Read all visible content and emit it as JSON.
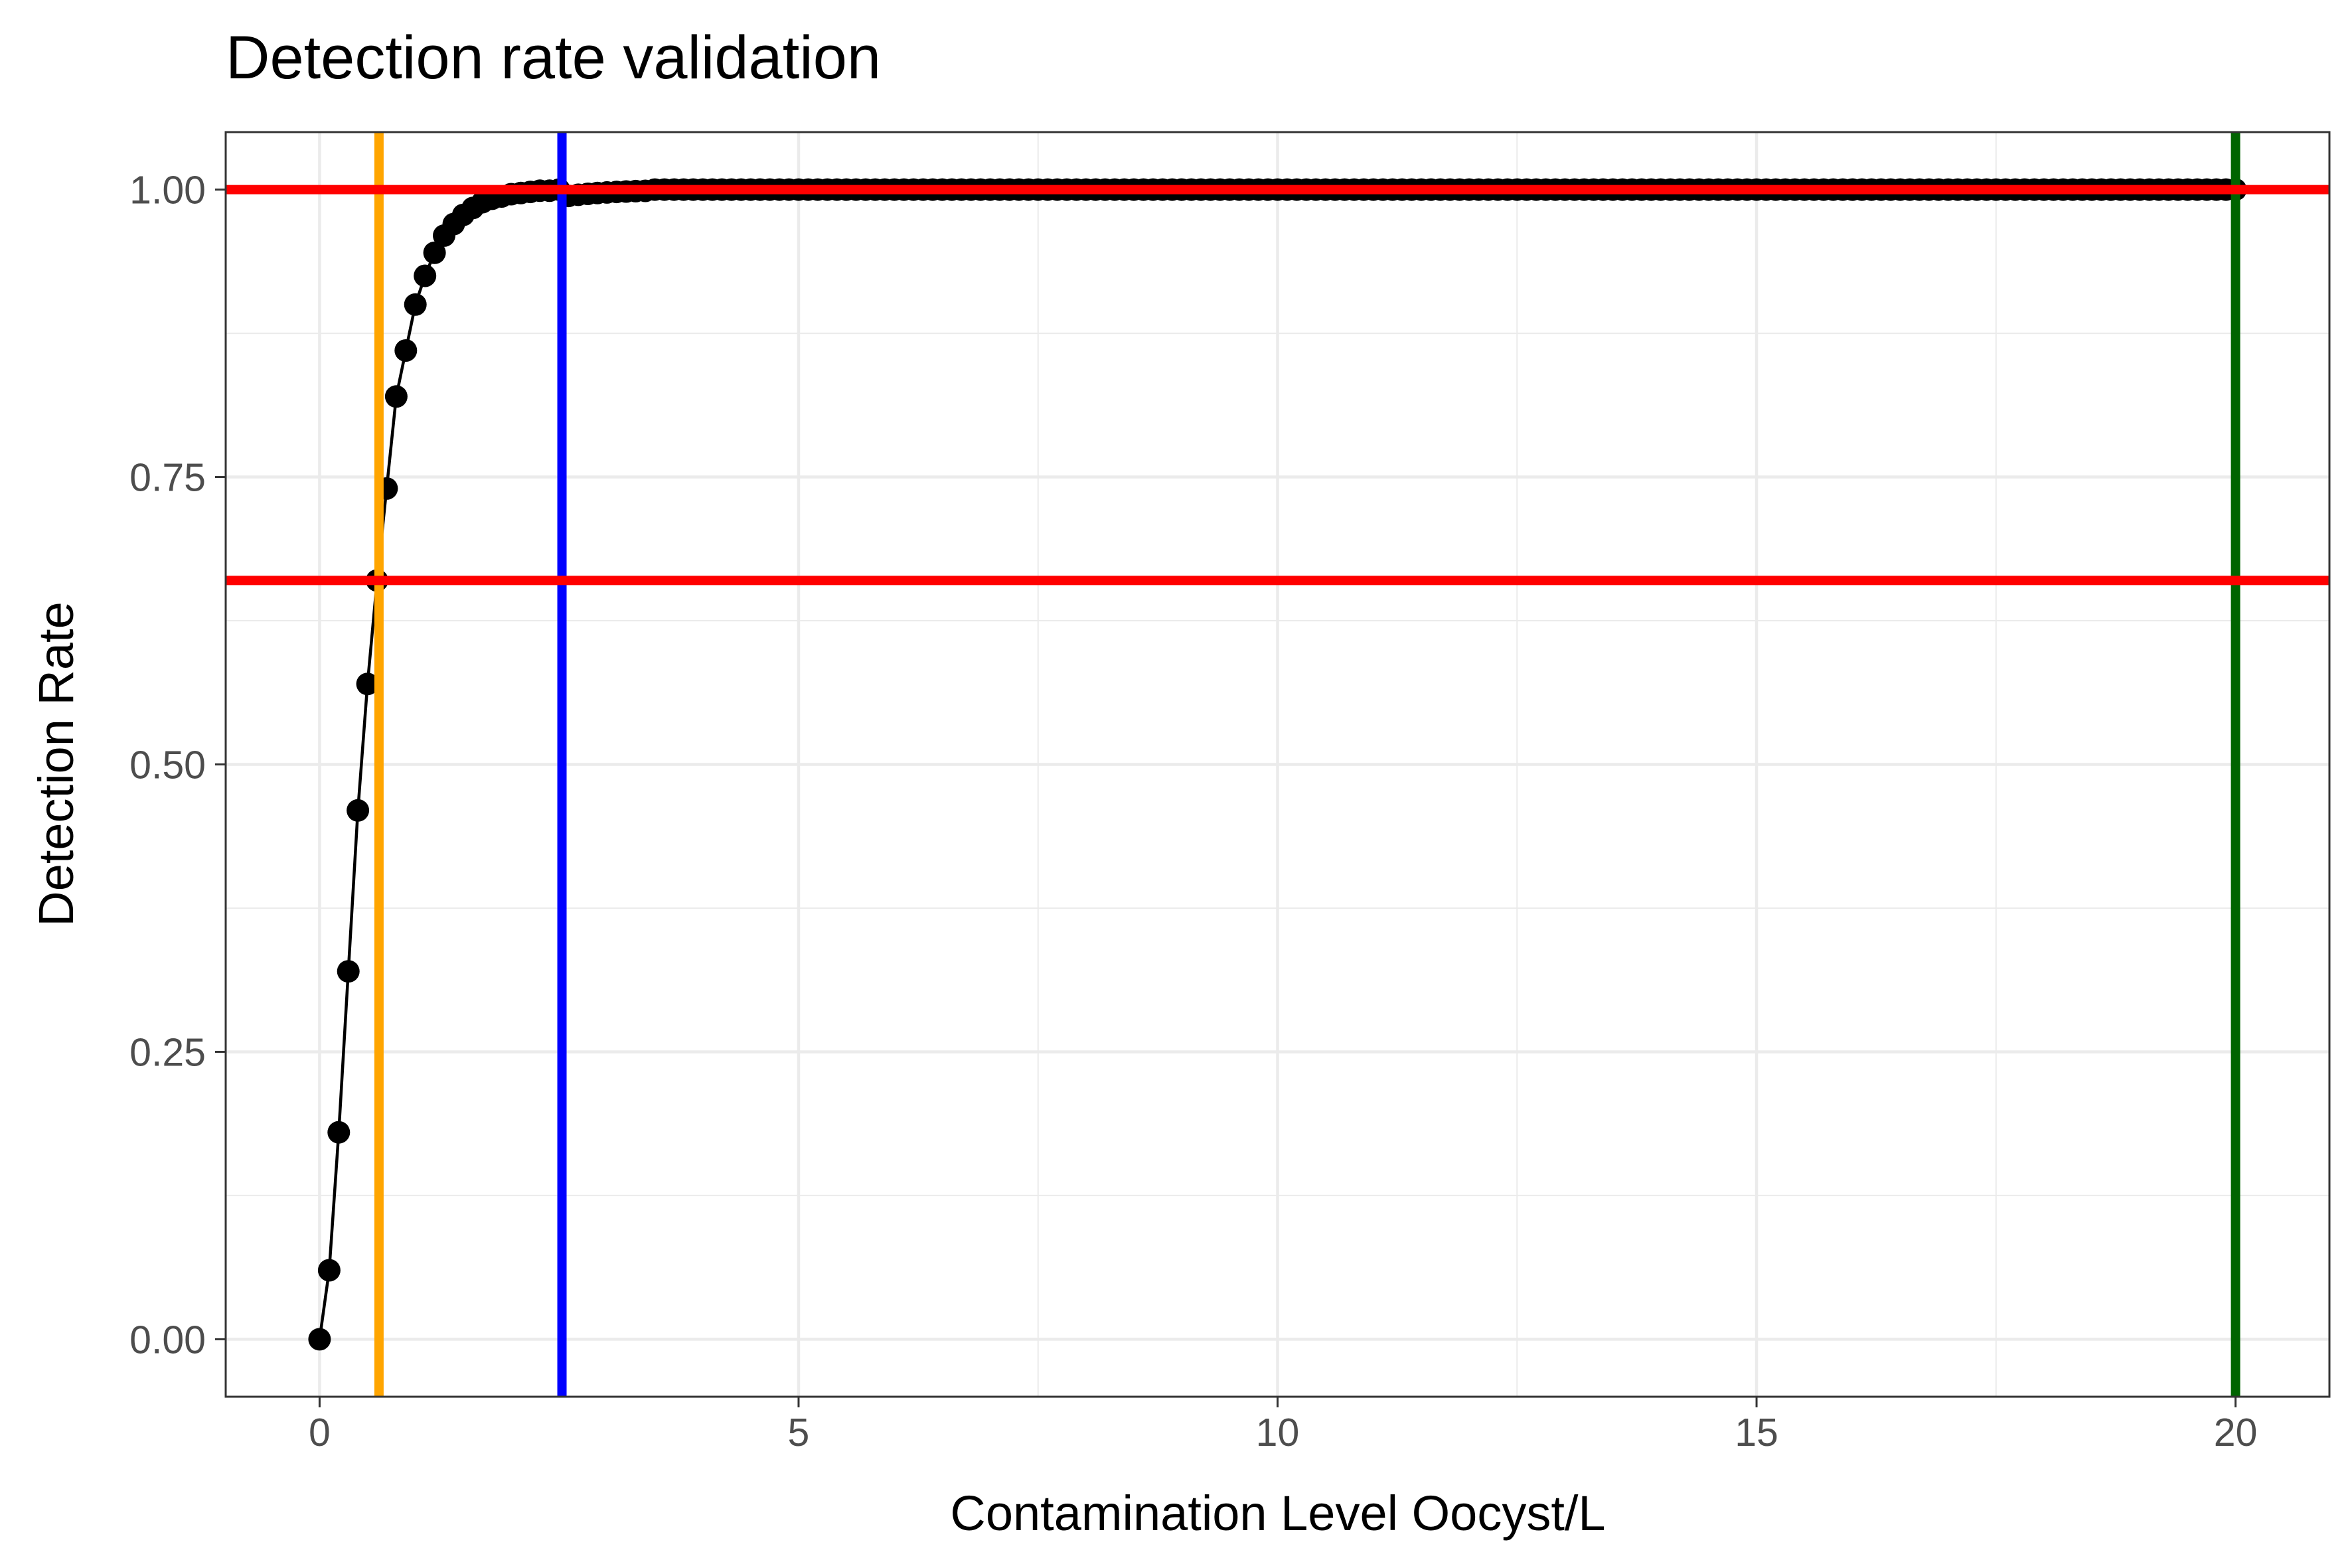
{
  "chart_data": {
    "type": "line",
    "title": "Detection rate validation",
    "xlabel": "Contamination Level Oocyst/L",
    "ylabel": "Detection Rate",
    "xlim": [
      -0.98,
      20.98
    ],
    "ylim": [
      -0.05,
      1.05
    ],
    "x_ticks": [
      0,
      5,
      10,
      15,
      20
    ],
    "x_tick_labels": [
      "0",
      "5",
      "10",
      "15",
      "20"
    ],
    "y_ticks": [
      0,
      0.25,
      0.5,
      0.75,
      1.0
    ],
    "y_tick_labels": [
      "0.00",
      "0.25",
      "0.50",
      "0.75",
      "1.00"
    ],
    "grid": true,
    "legend": "none",
    "series": [
      {
        "color": "#000000",
        "marker": "circle",
        "x_start": 0,
        "x_end": 20,
        "x_step": 0.1,
        "curve_rate": 2.0,
        "x": [
          0,
          0.1,
          0.2,
          0.3,
          0.4,
          0.5,
          0.6,
          0.7,
          0.8,
          0.9,
          1.0,
          1.1,
          1.2,
          1.3,
          1.4,
          1.5,
          1.6,
          1.7,
          1.8,
          1.9,
          2.0,
          2.1,
          2.2,
          2.3,
          2.4,
          2.5
        ],
        "y": [
          0.0,
          0.06,
          0.18,
          0.32,
          0.46,
          0.57,
          0.66,
          0.74,
          0.82,
          0.86,
          0.9,
          0.925,
          0.945,
          0.96,
          0.97,
          0.978,
          0.984,
          0.989,
          0.992,
          0.994,
          0.996,
          0.997,
          0.998,
          0.999,
          0.999,
          1.0
        ]
      }
    ],
    "hlines": [
      {
        "y": 1.0,
        "color": "#ff0000"
      },
      {
        "y": 0.66,
        "color": "#ff0000"
      }
    ],
    "vlines": [
      {
        "x": 0.62,
        "color": "#ffa500"
      },
      {
        "x": 2.53,
        "color": "#0000ff"
      },
      {
        "x": 20.0,
        "color": "#006400"
      }
    ]
  }
}
